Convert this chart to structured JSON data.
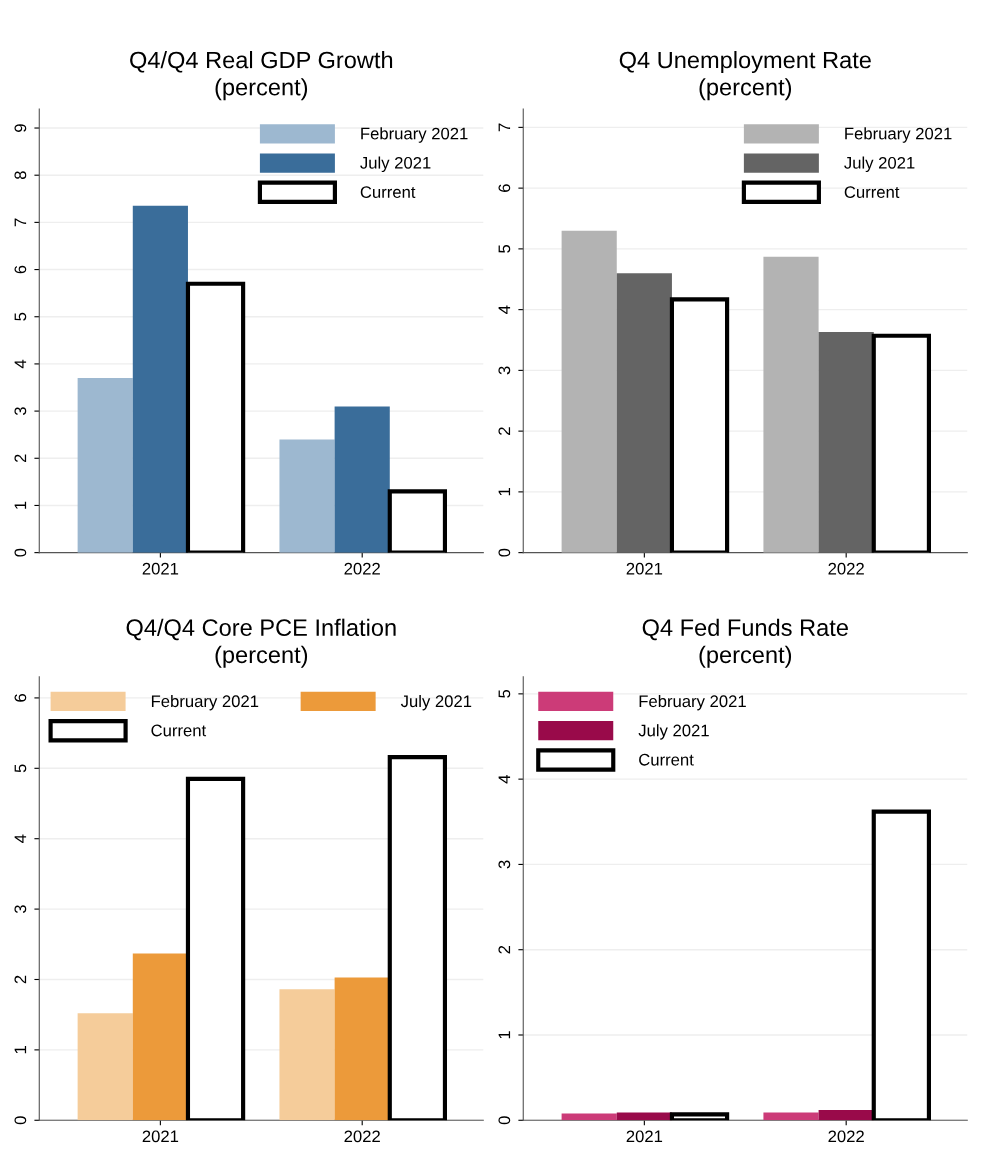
{
  "chart_data": [
    {
      "type": "bar",
      "title": "Q4/Q4 Real GDP Growth",
      "subtitle": "(percent)",
      "categories": [
        "2021",
        "2022"
      ],
      "ylim": [
        0,
        9.4
      ],
      "yticks": [
        0,
        1,
        2,
        3,
        4,
        5,
        6,
        7,
        8,
        9
      ],
      "grid": "y",
      "legend": "top right",
      "series": [
        {
          "name": "February 2021",
          "color": "#9db8d0",
          "values": [
            3.7,
            2.4
          ]
        },
        {
          "name": "July 2021",
          "color": "#3a6d9a",
          "values": [
            7.35,
            3.1
          ]
        },
        {
          "name": "Current",
          "color": "#ffffff",
          "values": [
            5.7,
            1.3
          ]
        }
      ]
    },
    {
      "type": "bar",
      "title": "Q4 Unemployment Rate",
      "subtitle": "(percent)",
      "categories": [
        "2021",
        "2022"
      ],
      "ylim": [
        0,
        7.3
      ],
      "yticks": [
        0,
        1,
        2,
        3,
        4,
        5,
        6,
        7
      ],
      "grid": "y",
      "legend": "top right",
      "series": [
        {
          "name": "February 2021",
          "color": "#b3b3b3",
          "values": [
            5.3,
            4.87
          ]
        },
        {
          "name": "July 2021",
          "color": "#646464",
          "values": [
            4.6,
            3.63
          ]
        },
        {
          "name": "Current",
          "color": "#ffffff",
          "values": [
            4.17,
            3.57
          ]
        }
      ]
    },
    {
      "type": "bar",
      "title": "Q4/Q4 Core PCE Inflation",
      "subtitle": "(percent)",
      "categories": [
        "2021",
        "2022"
      ],
      "ylim": [
        0,
        6.3
      ],
      "yticks": [
        0,
        1,
        2,
        3,
        4,
        5,
        6
      ],
      "grid": "y",
      "legend": "top",
      "series": [
        {
          "name": "February 2021",
          "color": "#f5cc9a",
          "values": [
            1.52,
            1.86
          ]
        },
        {
          "name": "July 2021",
          "color": "#ec9a3a",
          "values": [
            2.37,
            2.03
          ]
        },
        {
          "name": "Current",
          "color": "#ffffff",
          "values": [
            4.85,
            5.16
          ]
        }
      ]
    },
    {
      "type": "bar",
      "title": "Q4 Fed Funds Rate",
      "subtitle": "(percent)",
      "categories": [
        "2021",
        "2022"
      ],
      "ylim": [
        0,
        5.2
      ],
      "yticks": [
        0,
        1,
        2,
        3,
        4,
        5
      ],
      "grid": "y",
      "legend": "top left",
      "series": [
        {
          "name": "February 2021",
          "color": "#cc3b78",
          "values": [
            0.08,
            0.09
          ]
        },
        {
          "name": "July 2021",
          "color": "#990a4a",
          "values": [
            0.09,
            0.12
          ]
        },
        {
          "name": "Current",
          "color": "#ffffff",
          "values": [
            0.07,
            3.62
          ]
        }
      ]
    }
  ]
}
